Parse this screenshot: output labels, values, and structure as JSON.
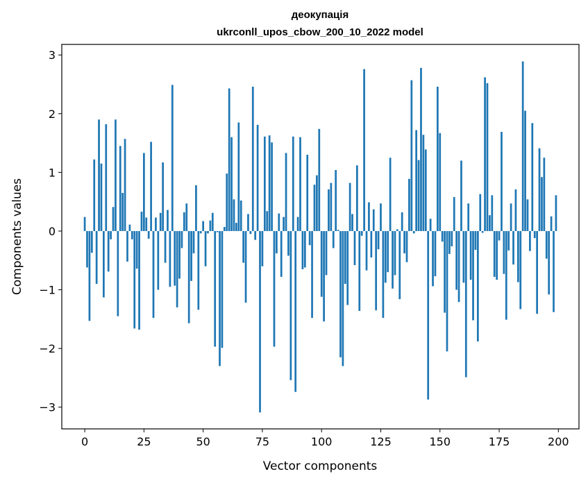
{
  "chart_data": {
    "type": "bar",
    "title": "деокупація",
    "subtitle": "ukrconll_upos_cbow_200_10_2022 model",
    "xlabel": "Vector components",
    "ylabel": "Components values",
    "xlim": [
      -9.7,
      208.7
    ],
    "ylim": [
      -3.37,
      3.18
    ],
    "xticks": [
      0,
      25,
      50,
      75,
      100,
      125,
      150,
      175,
      200
    ],
    "xtick_labels": [
      "0",
      "25",
      "50",
      "75",
      "100",
      "125",
      "150",
      "175",
      "200"
    ],
    "yticks": [
      3,
      2,
      1,
      0,
      -1,
      -2,
      -3
    ],
    "ytick_labels": [
      "3",
      "2",
      "1",
      "0",
      "−1",
      "−2",
      "−3"
    ],
    "grid": false,
    "color": "#1f77b4",
    "x": [
      0,
      1,
      2,
      3,
      4,
      5,
      6,
      7,
      8,
      9,
      10,
      11,
      12,
      13,
      14,
      15,
      16,
      17,
      18,
      19,
      20,
      21,
      22,
      23,
      24,
      25,
      26,
      27,
      28,
      29,
      30,
      31,
      32,
      33,
      34,
      35,
      36,
      37,
      38,
      39,
      40,
      41,
      42,
      43,
      44,
      45,
      46,
      47,
      48,
      49,
      50,
      51,
      52,
      53,
      54,
      55,
      56,
      57,
      58,
      59,
      60,
      61,
      62,
      63,
      64,
      65,
      66,
      67,
      68,
      69,
      70,
      71,
      72,
      73,
      74,
      75,
      76,
      77,
      78,
      79,
      80,
      81,
      82,
      83,
      84,
      85,
      86,
      87,
      88,
      89,
      90,
      91,
      92,
      93,
      94,
      95,
      96,
      97,
      98,
      99,
      100,
      101,
      102,
      103,
      104,
      105,
      106,
      107,
      108,
      109,
      110,
      111,
      112,
      113,
      114,
      115,
      116,
      117,
      118,
      119,
      120,
      121,
      122,
      123,
      124,
      125,
      126,
      127,
      128,
      129,
      130,
      131,
      132,
      133,
      134,
      135,
      136,
      137,
      138,
      139,
      140,
      141,
      142,
      143,
      144,
      145,
      146,
      147,
      148,
      149,
      150,
      151,
      152,
      153,
      154,
      155,
      156,
      157,
      158,
      159,
      160,
      161,
      162,
      163,
      164,
      165,
      166,
      167,
      168,
      169,
      170,
      171,
      172,
      173,
      174,
      175,
      176,
      177,
      178,
      179,
      180,
      181,
      182,
      183,
      184,
      185,
      186,
      187,
      188,
      189,
      190,
      191,
      192,
      193,
      194,
      195,
      196,
      197,
      198,
      199
    ],
    "values": [
      0.24,
      -0.62,
      -1.53,
      -0.37,
      1.22,
      -0.9,
      1.9,
      1.15,
      -1.13,
      1.82,
      -0.69,
      -0.14,
      0.41,
      1.9,
      -1.45,
      1.45,
      0.65,
      1.57,
      -0.52,
      0.11,
      -0.14,
      -1.66,
      -0.64,
      -1.68,
      0.33,
      1.33,
      0.23,
      -0.13,
      1.52,
      -1.48,
      0.23,
      -1.0,
      0.31,
      1.17,
      -0.54,
      0.36,
      -0.95,
      2.49,
      -0.93,
      -1.3,
      -0.81,
      -0.29,
      0.32,
      0.47,
      -1.57,
      -0.85,
      -0.38,
      0.78,
      -1.34,
      -0.04,
      0.17,
      -0.6,
      -0.04,
      0.18,
      0.31,
      -1.97,
      -0.02,
      -2.3,
      -1.99,
      0.07,
      0.98,
      2.43,
      1.6,
      0.54,
      0.14,
      1.85,
      0.52,
      -0.54,
      -1.22,
      0.29,
      -0.05,
      2.46,
      -0.15,
      1.81,
      -3.09,
      -0.6,
      1.61,
      0.34,
      1.63,
      1.51,
      -1.97,
      -0.38,
      0.3,
      -0.78,
      0.24,
      1.33,
      -0.42,
      -2.54,
      1.61,
      -2.74,
      0.24,
      1.6,
      -0.65,
      -0.62,
      1.3,
      -0.24,
      -1.48,
      0.79,
      0.95,
      1.74,
      -1.12,
      -1.54,
      -0.75,
      0.71,
      0.82,
      -0.29,
      1.04,
      0.02,
      -2.15,
      -2.3,
      -0.9,
      -1.26,
      0.82,
      0.29,
      -0.58,
      1.12,
      -1.36,
      -0.08,
      2.76,
      -0.67,
      0.49,
      -0.45,
      0.37,
      -1.35,
      -0.31,
      0.47,
      -1.48,
      -0.88,
      -0.7,
      1.25,
      -0.98,
      -0.75,
      0.03,
      -1.16,
      0.32,
      -0.38,
      -0.53,
      0.89,
      2.57,
      -0.04,
      1.72,
      1.21,
      2.78,
      1.64,
      1.39,
      -2.87,
      0.21,
      -0.94,
      -0.77,
      2.46,
      1.67,
      -0.18,
      -1.39,
      -2.05,
      -0.39,
      -0.26,
      0.58,
      -1.0,
      -1.21,
      1.2,
      -0.88,
      -2.49,
      0.47,
      -0.83,
      -1.52,
      -0.32,
      -1.88,
      0.63,
      -0.03,
      2.62,
      2.52,
      0.27,
      0.61,
      -0.78,
      -0.83,
      -0.16,
      1.69,
      -0.73,
      -1.51,
      -0.33,
      0.47,
      -0.57,
      0.71,
      -0.87,
      -1.33,
      2.89,
      2.05,
      0.54,
      -0.34,
      1.84,
      -0.12,
      -1.41,
      1.41,
      0.92,
      1.25,
      -0.47,
      -1.08,
      0.25,
      -1.38,
      0.61
    ]
  }
}
